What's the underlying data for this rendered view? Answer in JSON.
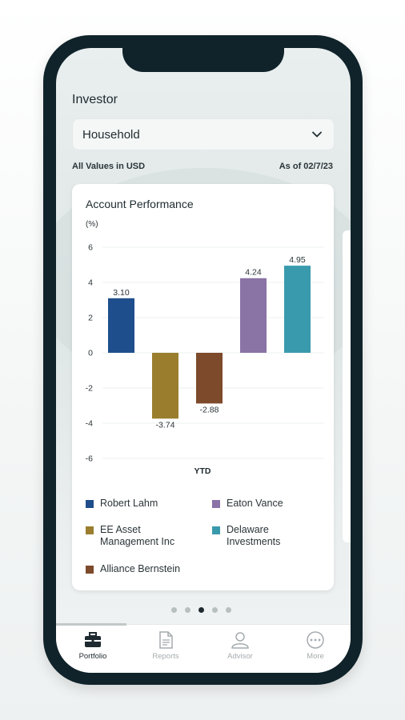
{
  "screen": {
    "title": "Investor",
    "dropdown_value": "Household",
    "values_note": "All Values in USD",
    "as_of": "As of 02/7/23"
  },
  "card": {
    "title": "Account Performance"
  },
  "chart_data": {
    "type": "bar",
    "title": "Account Performance",
    "unit_label": "(%)",
    "xlabel": "YTD",
    "categories": [
      "YTD"
    ],
    "series": [
      {
        "name": "Robert Lahm",
        "values": [
          3.1
        ],
        "color": "#1f4e8c",
        "label": "3.10"
      },
      {
        "name": "EE Asset Management Inc",
        "values": [
          -3.74
        ],
        "color": "#9a7e2e",
        "label": "-3.74"
      },
      {
        "name": "Alliance Bernstein",
        "values": [
          -2.88
        ],
        "color": "#7d4a2b",
        "label": "-2.88"
      },
      {
        "name": "Eaton Vance",
        "values": [
          4.24
        ],
        "color": "#8a73a5",
        "label": "4.24"
      },
      {
        "name": "Delaware Investments",
        "values": [
          4.95
        ],
        "color": "#3a9aad",
        "label": "4.95"
      }
    ],
    "yticks": [
      "6",
      "4",
      "2",
      "0",
      "-2",
      "-4",
      "-6"
    ],
    "ylim": [
      -6,
      6
    ],
    "grid": true,
    "legend_placement": "bottom"
  },
  "legend": [
    {
      "label": "Robert Lahm",
      "color": "#1f4e8c"
    },
    {
      "label": "Eaton Vance",
      "color": "#8a73a5"
    },
    {
      "label": "EE Asset\nManagement Inc",
      "color": "#9a7e2e"
    },
    {
      "label": "Delaware\nInvestments",
      "color": "#3a9aad"
    },
    {
      "label": "Alliance Bernstein",
      "color": "#7d4a2b"
    }
  ],
  "pagination": {
    "count": 5,
    "active_index": 2
  },
  "tabs": [
    {
      "label": "Portfolio",
      "icon": "briefcase-icon",
      "active": true
    },
    {
      "label": "Reports",
      "icon": "document-icon",
      "active": false
    },
    {
      "label": "Advisor",
      "icon": "person-icon",
      "active": false
    },
    {
      "label": "More",
      "icon": "more-icon",
      "active": false
    }
  ]
}
